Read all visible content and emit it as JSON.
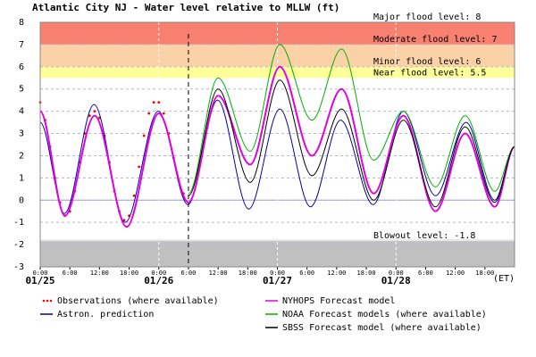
{
  "chart_data": {
    "type": "line",
    "title": "Atlantic City NJ  -  Water level relative to MLLW (ft)",
    "xlim": [
      0,
      96
    ],
    "ylim": [
      -3,
      8
    ],
    "yticks": [
      -3,
      -2,
      -1,
      0,
      1,
      2,
      3,
      4,
      5,
      6,
      7,
      8
    ],
    "xticks": [
      {
        "value": 0,
        "label": "0:00"
      },
      {
        "value": 6,
        "label": "6:00"
      },
      {
        "value": 12,
        "label": "12:00"
      },
      {
        "value": 18,
        "label": "18:00"
      },
      {
        "value": 24,
        "label": "0:00"
      },
      {
        "value": 30,
        "label": "6:00"
      },
      {
        "value": 36,
        "label": "12:00"
      },
      {
        "value": 42,
        "label": "18:00"
      },
      {
        "value": 48,
        "label": "0:00"
      },
      {
        "value": 54,
        "label": "6:00"
      },
      {
        "value": 60,
        "label": "12:00"
      },
      {
        "value": 66,
        "label": "18:00"
      },
      {
        "value": 72,
        "label": "0:00"
      },
      {
        "value": 78,
        "label": "6:00"
      },
      {
        "value": 84,
        "label": "12:00"
      },
      {
        "value": 90,
        "label": "18:00"
      }
    ],
    "day_labels": [
      {
        "value": 0,
        "label": "01/25"
      },
      {
        "value": 24,
        "label": "01/26"
      },
      {
        "value": 48,
        "label": "01/27"
      },
      {
        "value": 72,
        "label": "01/28"
      }
    ],
    "time_zone": "(ET)",
    "forecast_start": 30,
    "grid": true,
    "levels": [
      {
        "label": "Major flood level: 8",
        "value": 8,
        "color": "#f88070"
      },
      {
        "label": "Moderate flood level: 7",
        "value": 7,
        "color": "#f88070"
      },
      {
        "label": "Minor flood level: 6",
        "value": 6,
        "color": "#fbd2a8"
      },
      {
        "label": "Near flood level: 5.5",
        "value": 5.5,
        "color": "#ffff99"
      }
    ],
    "blowout": {
      "label": "Blowout level: -1.8",
      "value": -1.8,
      "color": "#c0c0c0"
    },
    "series": [
      {
        "name": "Observations (where available)",
        "color": "#ff0000",
        "style": "dots",
        "x": [
          0,
          1,
          2,
          3,
          4,
          5,
          6,
          7,
          8,
          9,
          10,
          11,
          12,
          13,
          14,
          15,
          16,
          17,
          18,
          19,
          20,
          21,
          22,
          23,
          24,
          25,
          26,
          27,
          28,
          29
        ],
        "values": [
          4.4,
          3.6,
          2.4,
          1.0,
          -0.1,
          -0.7,
          -0.5,
          0.4,
          1.7,
          3.0,
          3.8,
          4.0,
          3.7,
          2.9,
          1.7,
          0.4,
          -0.5,
          -0.9,
          -0.7,
          0.2,
          1.5,
          2.9,
          3.9,
          4.4,
          4.4,
          3.9,
          3.0,
          1.9,
          0.9,
          0.3
        ]
      },
      {
        "name": "Astron. prediction",
        "color": "#0000a0",
        "style": "line",
        "x": [
          0,
          4.9,
          10.9,
          17.2,
          23.9,
          29.9,
          35.9,
          42.2,
          48.5,
          54.7,
          60.8,
          67.4,
          73.5,
          80,
          86.2,
          92,
          96
        ],
        "values": [
          3.5,
          -0.6,
          4.3,
          -1.0,
          4.0,
          -0.2,
          4.5,
          -0.4,
          4.1,
          -0.3,
          3.6,
          -0.2,
          4.0,
          0.2,
          3.5,
          0.0,
          2.4
        ]
      },
      {
        "name": "NYHOPS Forecast model",
        "color": "#e000e0",
        "style": "line",
        "x": [
          0,
          5,
          11,
          17.5,
          24,
          30,
          36,
          42.5,
          48.5,
          55,
          61,
          67.5,
          73.5,
          80,
          86,
          92,
          96
        ],
        "values": [
          4.0,
          -0.7,
          3.8,
          -1.2,
          3.9,
          -0.1,
          4.7,
          1.6,
          6.0,
          2.0,
          5.0,
          0.3,
          3.8,
          -0.5,
          3.0,
          -0.3,
          2.4
        ]
      },
      {
        "name": "NOAA Forecast models (where available)",
        "color": "#00b000",
        "style": "line",
        "x": [
          30,
          36,
          42.5,
          48.5,
          55,
          61,
          67.5,
          73.5,
          80,
          86,
          92,
          96
        ],
        "values": [
          0.3,
          5.5,
          2.2,
          7.0,
          3.6,
          6.8,
          1.8,
          4.0,
          0.6,
          3.8,
          0.4,
          2.4
        ]
      },
      {
        "name": "SBSS Forecast model (where available)",
        "color": "#000000",
        "style": "line",
        "x": [
          30,
          36,
          42.5,
          48.5,
          55,
          61,
          67.5,
          73.5,
          80,
          86,
          92,
          96
        ],
        "values": [
          0.2,
          5.0,
          0.8,
          5.4,
          1.1,
          4.1,
          0.0,
          3.6,
          -0.3,
          3.3,
          -0.1,
          2.4
        ]
      }
    ]
  }
}
